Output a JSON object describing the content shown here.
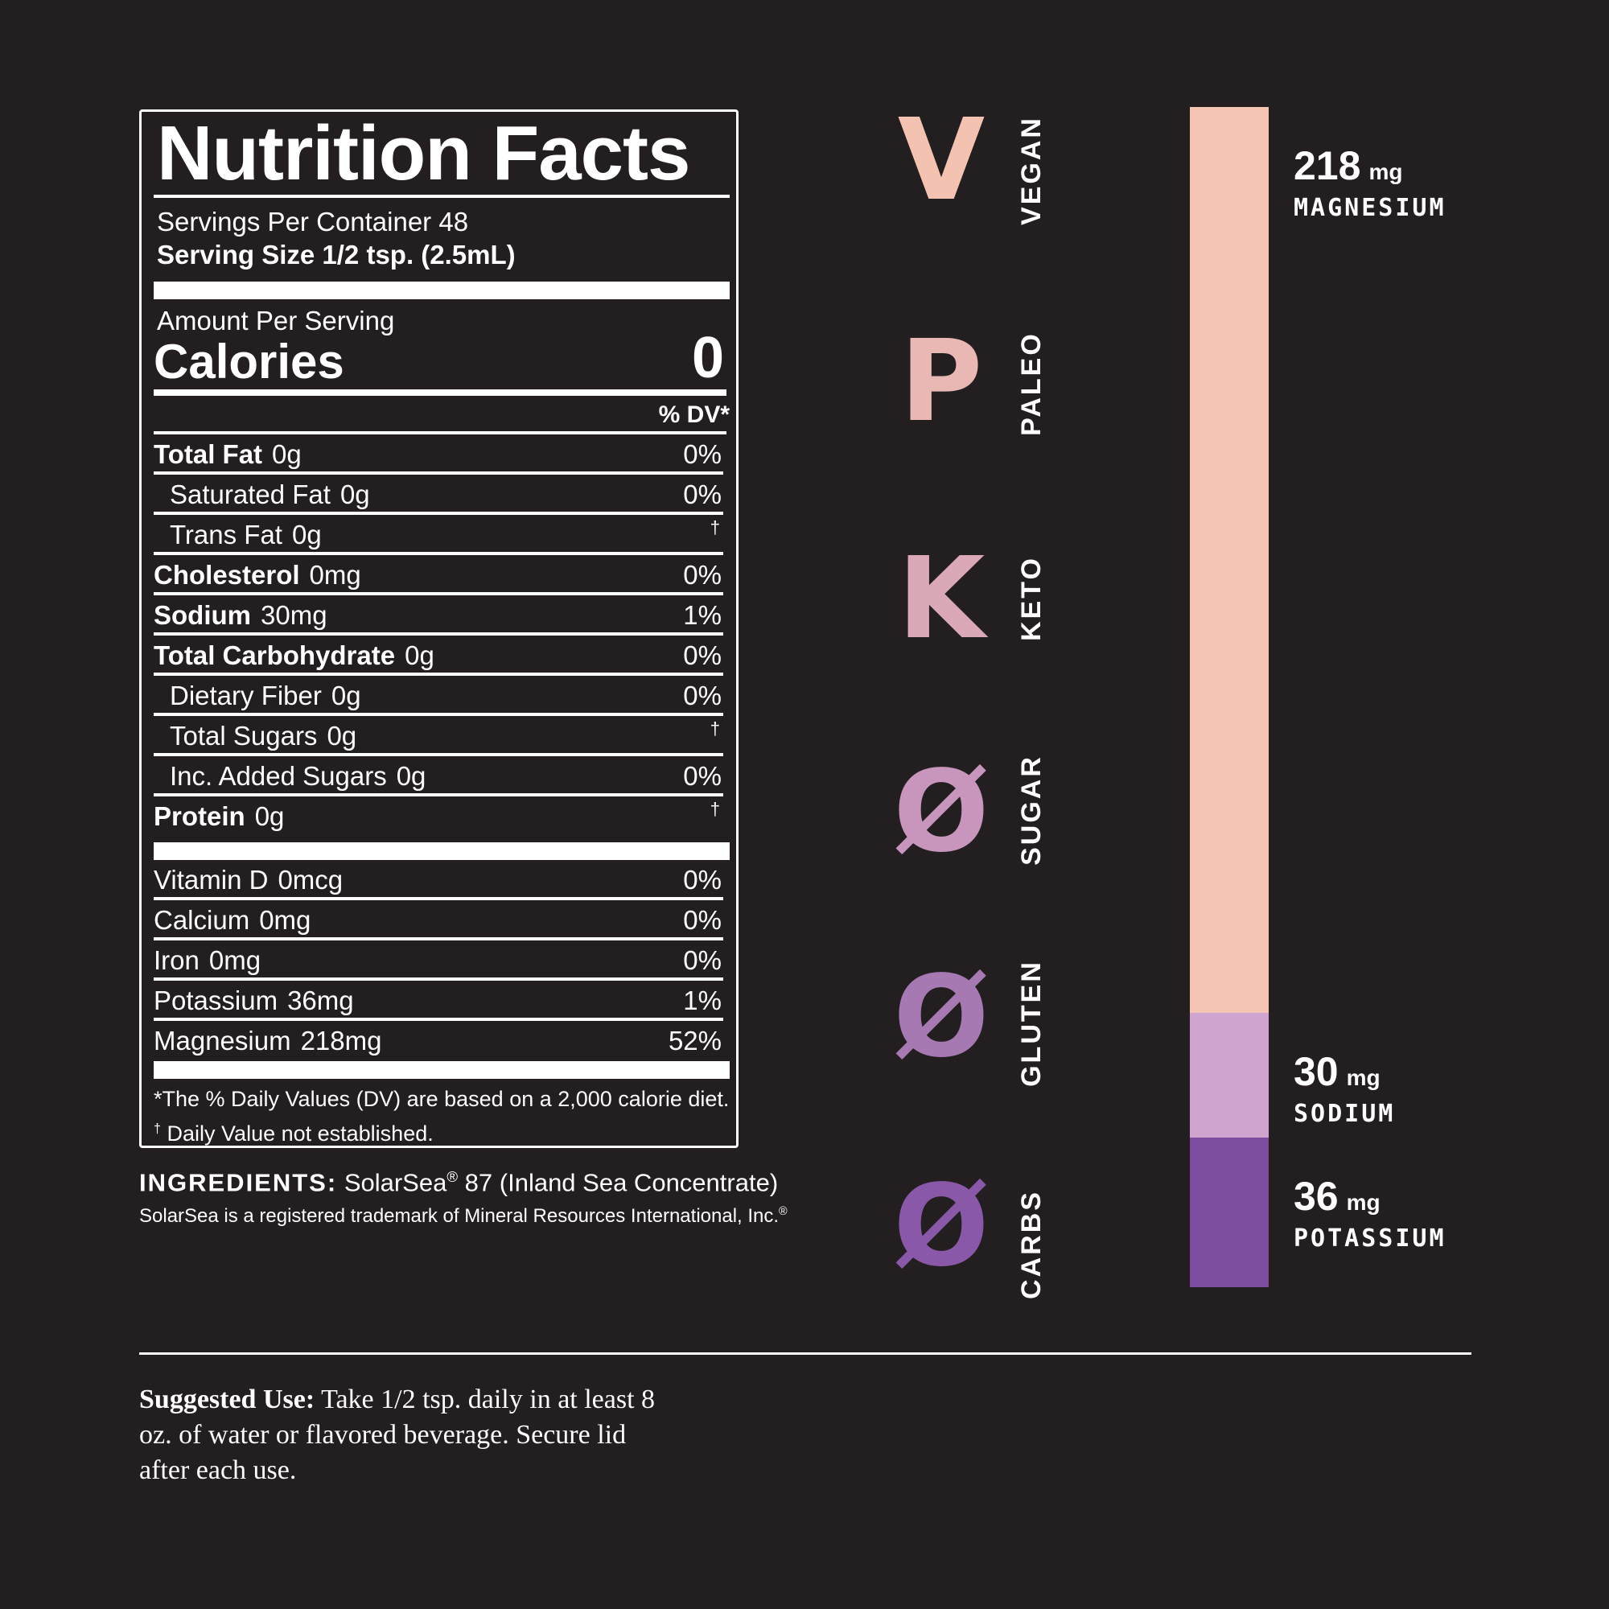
{
  "nutrition": {
    "title": "Nutrition Facts",
    "servings_per_container": "Servings Per Container 48",
    "serving_size": "Serving Size 1/2 tsp. (2.5mL)",
    "amount_per_serving": "Amount Per Serving",
    "calories_label": "Calories",
    "calories_value": "0",
    "dv_header": "% DV*",
    "rows": [
      {
        "name": "Total Fat",
        "amount": "0g",
        "dv": "0%"
      },
      {
        "name": "Saturated Fat",
        "amount": "0g",
        "dv": "0%"
      },
      {
        "name": "Trans Fat",
        "amount": "0g",
        "dv": "†"
      },
      {
        "name": "Cholesterol",
        "amount": "0mg",
        "dv": "0%"
      },
      {
        "name": "Sodium",
        "amount": "30mg",
        "dv": "1%"
      },
      {
        "name": "Total Carbohydrate",
        "amount": "0g",
        "dv": "0%"
      },
      {
        "name": "Dietary Fiber",
        "amount": "0g",
        "dv": "0%"
      },
      {
        "name": "Total Sugars",
        "amount": "0g",
        "dv": "†"
      },
      {
        "name": "Inc. Added Sugars",
        "amount": "0g",
        "dv": "0%"
      },
      {
        "name": "Protein",
        "amount": "0g",
        "dv": "†"
      }
    ],
    "vitamins": [
      {
        "name": "Vitamin D",
        "amount": "0mcg",
        "dv": "0%"
      },
      {
        "name": "Calcium",
        "amount": "0mg",
        "dv": "0%"
      },
      {
        "name": "Iron",
        "amount": "0mg",
        "dv": "0%"
      },
      {
        "name": "Potassium",
        "amount": "36mg",
        "dv": "1%"
      },
      {
        "name": "Magnesium",
        "amount": "218mg",
        "dv": "52%"
      }
    ],
    "footnote_dv": "*The % Daily Values (DV) are based on a 2,000 calorie diet.",
    "footnote_dagger_mark": "†",
    "footnote_dagger": "Daily Value not established."
  },
  "ingredients": {
    "label": "INGREDIENTS:",
    "text_brand": "SolarSea",
    "reg_mark": "®",
    "text_rest": "87 (Inland Sea Concentrate)",
    "trademark_note": "SolarSea is a registered trademark of Mineral Resources International, Inc.",
    "trademark_mark": "®"
  },
  "diet_badges": [
    {
      "glyph": "V",
      "label": "VEGAN",
      "color": "#f4c2b0"
    },
    {
      "glyph": "P",
      "label": "PALEO",
      "color": "#e9b8b4"
    },
    {
      "glyph": "K",
      "label": "KETO",
      "color": "#dba8b8"
    },
    {
      "glyph": "Ø",
      "label": "SUGAR",
      "color": "#c896bd"
    },
    {
      "glyph": "Ø",
      "label": "GLUTEN",
      "color": "#a779b2"
    },
    {
      "glyph": "Ø",
      "label": "CARBS",
      "color": "#8a58a8"
    }
  ],
  "minerals": [
    {
      "value": "218",
      "unit": "mg",
      "name": "MAGNESIUM",
      "amount_mg": 218,
      "color": "#f4c5b3"
    },
    {
      "value": "30",
      "unit": "mg",
      "name": "SODIUM",
      "amount_mg": 30,
      "color": "#cfa5cf"
    },
    {
      "value": "36",
      "unit": "mg",
      "name": "POTASSIUM",
      "amount_mg": 36,
      "color": "#7c4c9e"
    }
  ],
  "suggested_use": {
    "label": "Suggested Use:",
    "text": "Take 1/2 tsp. daily in at least 8 oz. of water or flavored beverage. Secure lid after each use."
  }
}
